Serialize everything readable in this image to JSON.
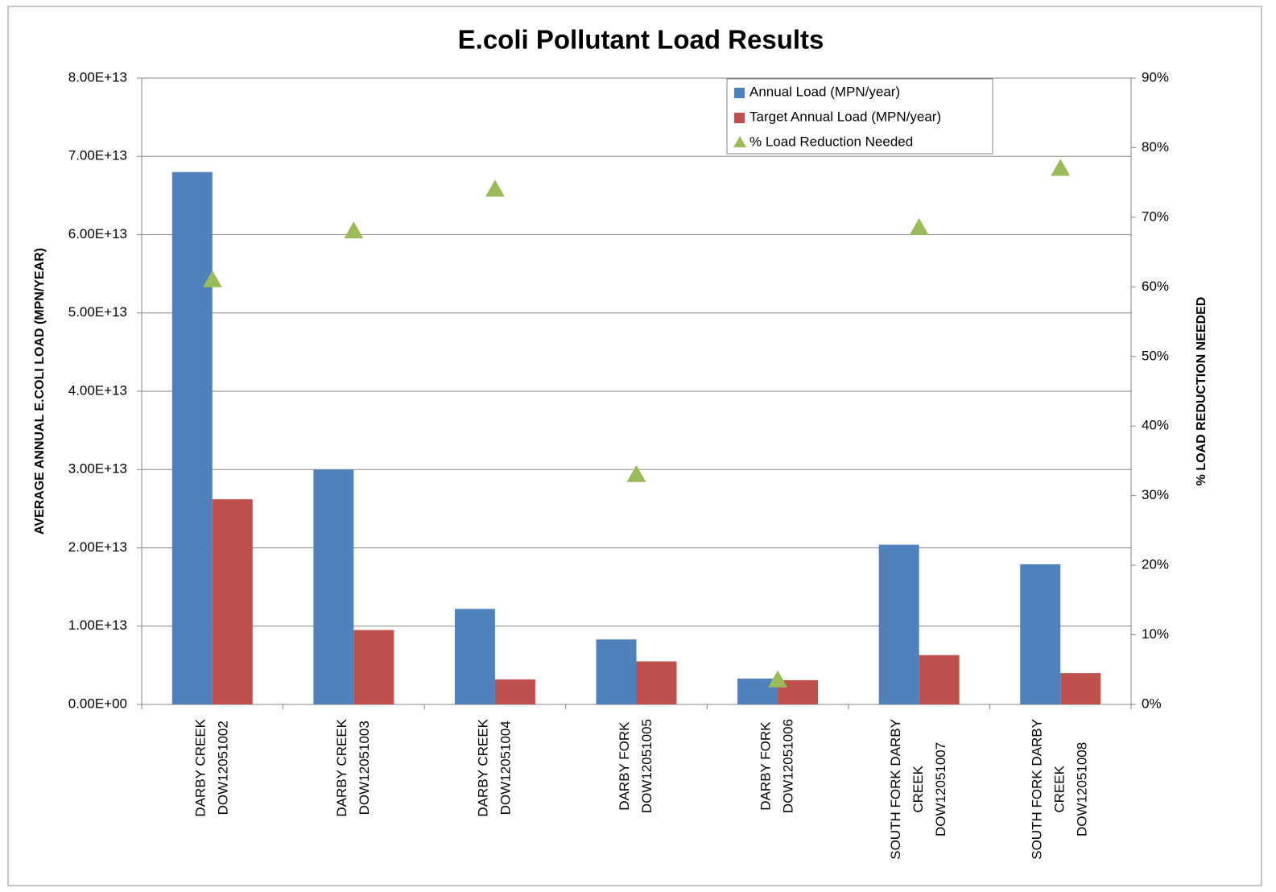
{
  "chart_data": {
    "type": "bar",
    "title": "E.coli Pollutant Load Results",
    "y_label": "AVERAGE ANNUAL E.COLI LOAD (MPN/YEAR)",
    "y2_label": "% LOAD REDUCTION NEEDED",
    "categories": [
      [
        "DARBY CREEK",
        "DOW12051002"
      ],
      [
        "DARBY CREEK",
        "DOW12051003"
      ],
      [
        "DARBY CREEK",
        "DOW12051004"
      ],
      [
        "DARBY FORK",
        "DOW12051005"
      ],
      [
        "DARBY FORK",
        "DOW12051006"
      ],
      [
        "SOUTH FORK DARBY",
        "CREEK",
        "DOW12051007"
      ],
      [
        "SOUTH FORK DARBY",
        "CREEK",
        "DOW12051008"
      ]
    ],
    "series": [
      {
        "name": "Annual Load (MPN/year)",
        "color": "#4f81bd",
        "values": [
          68000000000000.0,
          30000000000000.0,
          12200000000000.0,
          8300000000000.0,
          3300000000000.0,
          20400000000000.0,
          17900000000000.0
        ]
      },
      {
        "name": "Target Annual Load (MPN/year)",
        "color": "#c0504d",
        "values": [
          26200000000000.0,
          9500000000000.0,
          3200000000000.0,
          5500000000000.0,
          3100000000000.0,
          6300000000000.0,
          4000000000000.0
        ]
      },
      {
        "name": "% Load Reduction Needed",
        "color": "#9bbb59",
        "type": "scatter",
        "marker": "triangle",
        "axis": "y2",
        "values": [
          61,
          68,
          74,
          33,
          3.5,
          68.5,
          77
        ]
      }
    ],
    "ylim": [
      0,
      80000000000000.0
    ],
    "yticks": [
      {
        "value": 0,
        "label": "0.00E+00"
      },
      {
        "value": 10000000000000.0,
        "label": "1.00E+13"
      },
      {
        "value": 20000000000000.0,
        "label": "2.00E+13"
      },
      {
        "value": 30000000000000.0,
        "label": "3.00E+13"
      },
      {
        "value": 40000000000000.0,
        "label": "4.00E+13"
      },
      {
        "value": 50000000000000.0,
        "label": "5.00E+13"
      },
      {
        "value": 60000000000000.0,
        "label": "6.00E+13"
      },
      {
        "value": 70000000000000.0,
        "label": "7.00E+13"
      },
      {
        "value": 80000000000000.0,
        "label": "8.00E+13"
      }
    ],
    "y2lim": [
      0,
      90
    ],
    "y2ticks": [
      {
        "value": 0,
        "label": "0%"
      },
      {
        "value": 10,
        "label": "10%"
      },
      {
        "value": 20,
        "label": "20%"
      },
      {
        "value": 30,
        "label": "30%"
      },
      {
        "value": 40,
        "label": "40%"
      },
      {
        "value": 50,
        "label": "50%"
      },
      {
        "value": 60,
        "label": "60%"
      },
      {
        "value": 70,
        "label": "70%"
      },
      {
        "value": 80,
        "label": "80%"
      },
      {
        "value": 90,
        "label": "90%"
      }
    ],
    "grid": true,
    "legend": "top-right"
  }
}
